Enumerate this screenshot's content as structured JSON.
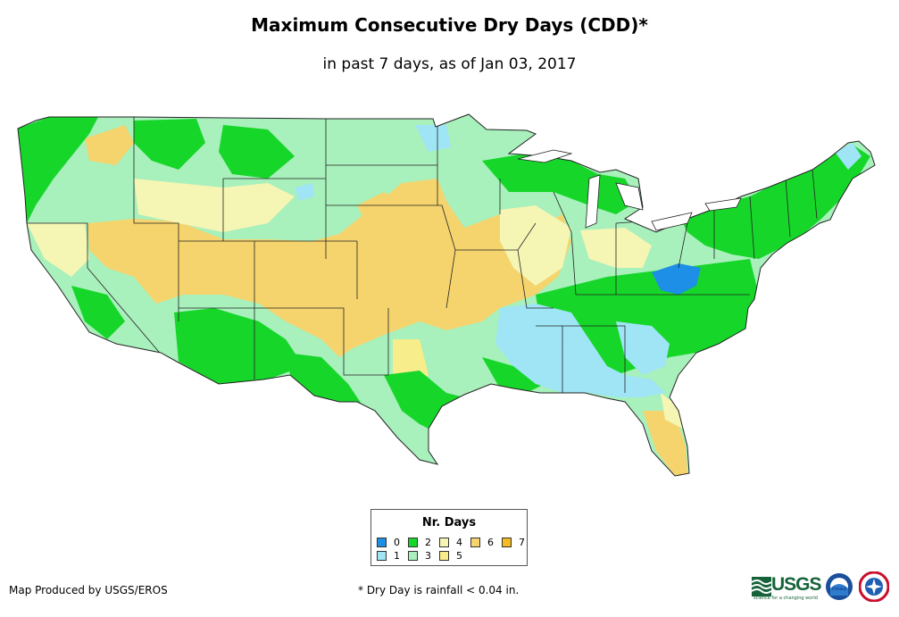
{
  "title": "Maximum Consecutive Dry Days (CDD)*",
  "subtitle": "in past 7 days, as of Jan 03, 2017",
  "legend": {
    "title": "Nr. Days",
    "items": [
      {
        "label": "0",
        "color": "#1e8fe6"
      },
      {
        "label": "1",
        "color": "#9fe5f5"
      },
      {
        "label": "2",
        "color": "#17d62a"
      },
      {
        "label": "3",
        "color": "#a8f0bc"
      },
      {
        "label": "4",
        "color": "#f5f5b4"
      },
      {
        "label": "5",
        "color": "#f7ed8a"
      },
      {
        "label": "6",
        "color": "#f5d46e"
      },
      {
        "label": "7",
        "color": "#f5bb24"
      }
    ]
  },
  "credit": "Map Produced by USGS/EROS",
  "footnote": "* Dry Day is rainfall < 0.04 in.",
  "logos": {
    "usgs": "USGS",
    "usgs_tagline": "science for a changing world",
    "noaa": "noaa"
  }
}
